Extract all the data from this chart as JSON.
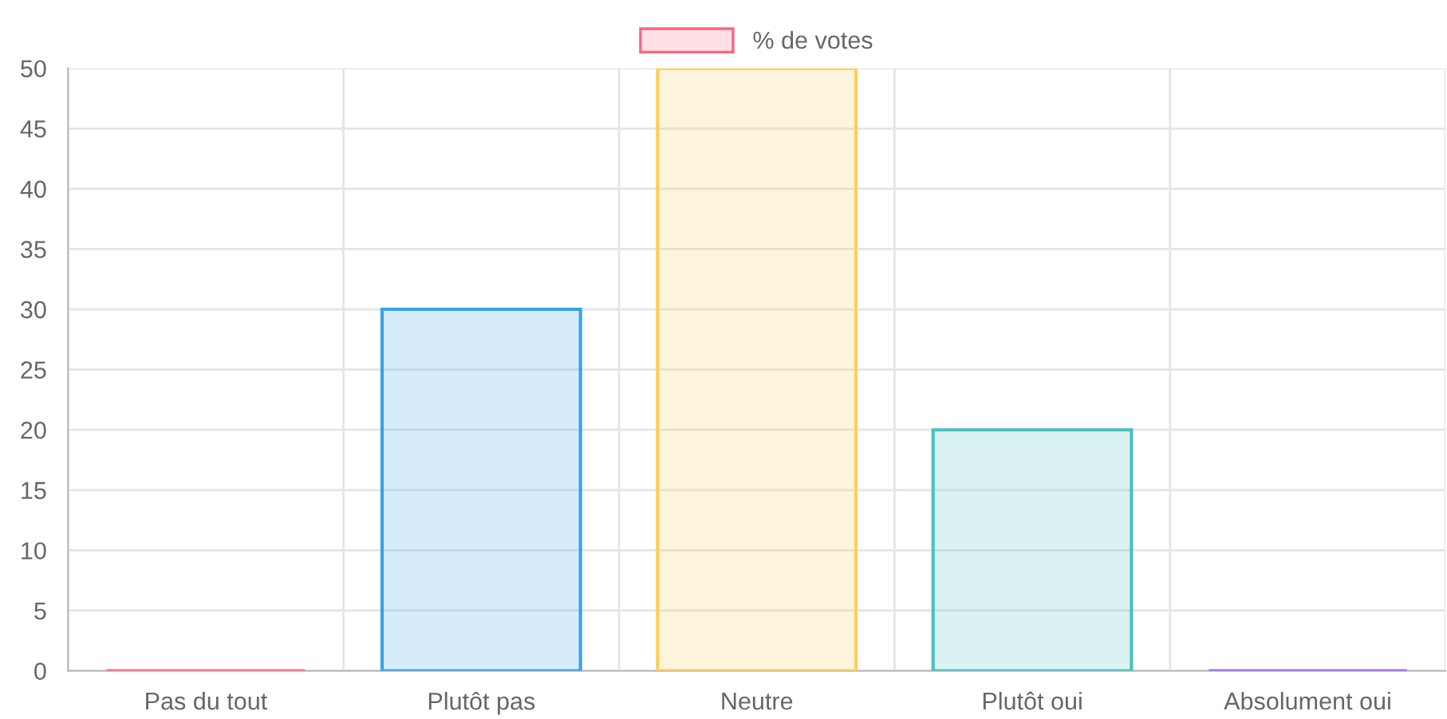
{
  "chart_data": {
    "type": "bar",
    "categories": [
      "Pas du tout",
      "Plutôt pas",
      "Neutre",
      "Plutôt oui",
      "Absolument oui"
    ],
    "series": [
      {
        "name": "% de votes",
        "values": [
          0,
          30,
          50,
          20,
          0
        ]
      }
    ],
    "colors": [
      "#ff6384",
      "#36a2eb",
      "#ffcd56",
      "#4bc0c0",
      "#9966ff"
    ],
    "ylim": [
      0,
      50
    ],
    "yticks": [
      0,
      5,
      10,
      15,
      20,
      25,
      30,
      35,
      40,
      45,
      50
    ],
    "grid": true,
    "legend": "top"
  }
}
